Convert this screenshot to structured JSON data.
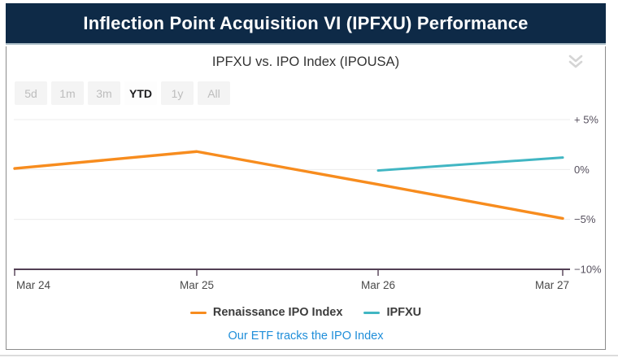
{
  "header": {
    "title": "Inflection Point Acquisition VI (IPFXU) Performance",
    "bg_color": "#0e2a47"
  },
  "card": {
    "title": "IPFXU vs. IPO Index (IPOUSA)",
    "collapse_icon": "double-chevron-down",
    "collapse_icon_color": "#d5d5d5",
    "footer_link": "Our ETF tracks the IPO Index",
    "footer_link_color": "#1f8ed9"
  },
  "range_selector": {
    "options": [
      "5d",
      "1m",
      "3m",
      "YTD",
      "1y",
      "All"
    ],
    "active": "YTD"
  },
  "chart_data": {
    "type": "line",
    "title": "IPFXU vs. IPO Index (IPOUSA)",
    "categories": [
      "Mar 24",
      "Mar 25",
      "Mar 26",
      "Mar 27"
    ],
    "series": [
      {
        "name": "Renaissance IPO Index",
        "color": "#f78c1e",
        "values": [
          0.1,
          1.8,
          -1.5,
          -4.9
        ]
      },
      {
        "name": "IPFXU",
        "color": "#41b6c3",
        "values": [
          null,
          null,
          -0.1,
          1.2
        ]
      }
    ],
    "unit": "%",
    "ylim": [
      -10,
      5
    ],
    "yticks": [
      {
        "value": 5,
        "label": "+ 5%"
      },
      {
        "value": 0,
        "label": "0%"
      },
      {
        "value": -5,
        "label": "−5%"
      },
      {
        "value": -10,
        "label": "−10%"
      }
    ],
    "grid": true,
    "legend_position": "bottom",
    "colors": {
      "gridline": "#ececec",
      "axis": "#523f54",
      "x_labels": "#4a4a4a",
      "y_labels": "#56505e"
    }
  }
}
